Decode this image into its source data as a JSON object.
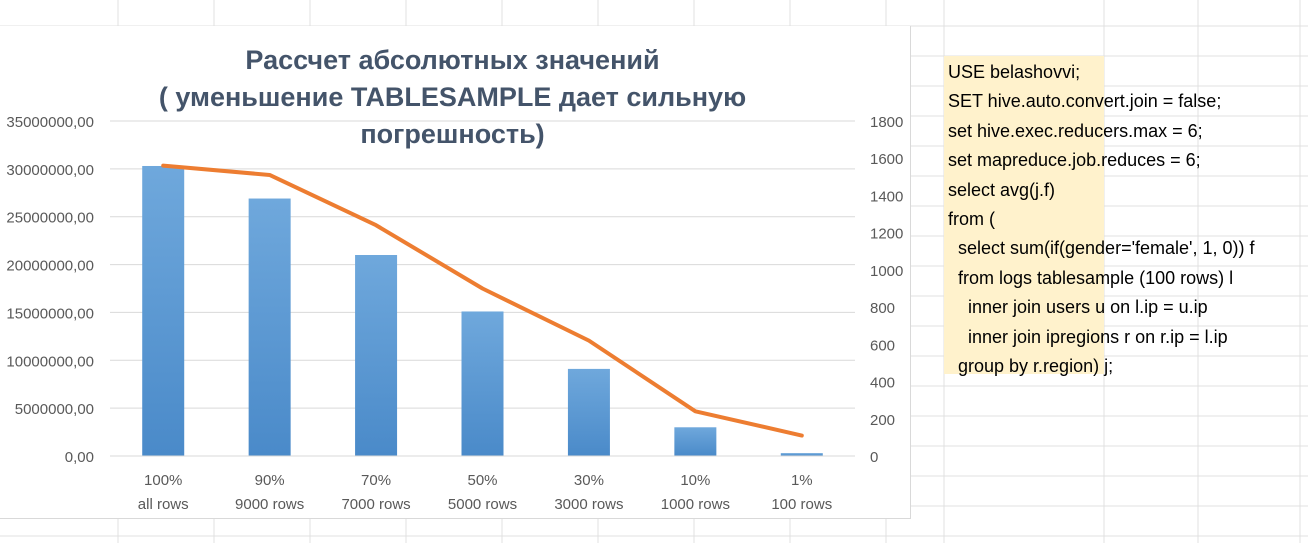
{
  "chart_data": {
    "type": "bar+line",
    "title": "Рассчет абсолютных значений\n( уменьшение TABLESAMPLE дает сильную погрешность)",
    "categories": [
      [
        "100%",
        "all rows"
      ],
      [
        "90%",
        "9000 rows"
      ],
      [
        "70%",
        "7000 rows"
      ],
      [
        "50%",
        "5000 rows"
      ],
      [
        "30%",
        "3000 rows"
      ],
      [
        "10%",
        "1000 rows"
      ],
      [
        "1%",
        "100 rows"
      ]
    ],
    "series": [
      {
        "kind": "bar",
        "axis": "left",
        "color": "#5b9bd5",
        "values": [
          30300000,
          26900000,
          21000000,
          15100000,
          9100000,
          3000000,
          300000
        ]
      },
      {
        "kind": "line",
        "axis": "right",
        "color": "#ed7d31",
        "values": [
          1560,
          1510,
          1240,
          900,
          620,
          240,
          110
        ]
      }
    ],
    "left_axis": {
      "min": 0,
      "max": 35000000,
      "ticks": [
        "0,00",
        "5000000,00",
        "10000000,00",
        "15000000,00",
        "20000000,00",
        "25000000,00",
        "30000000,00",
        "35000000,00"
      ]
    },
    "right_axis": {
      "min": 0,
      "max": 1800,
      "ticks": [
        "0",
        "200",
        "400",
        "600",
        "800",
        "1000",
        "1200",
        "1400",
        "1600",
        "1800"
      ]
    },
    "gridlines": true,
    "legend": "none"
  },
  "code": {
    "lines": [
      "USE belashovvi;",
      "SET hive.auto.convert.join = false;",
      "set hive.exec.reducers.max = 6;",
      "set mapreduce.job.reduces = 6;",
      "select avg(j.f)",
      "from (",
      "  select sum(if(gender='female', 1, 0)) f",
      "  from logs tablesample (100 rows) l",
      "    inner join users u on l.ip = u.ip",
      "    inner join ipregions r on r.ip = l.ip",
      "  group by r.region) j;"
    ]
  },
  "colors": {
    "bar": "#5b9bd5",
    "line": "#ed7d31",
    "title": "#44546a",
    "axis_text": "#595959",
    "gridline": "#d9d9d9",
    "code_bg": "#fff2cc"
  }
}
